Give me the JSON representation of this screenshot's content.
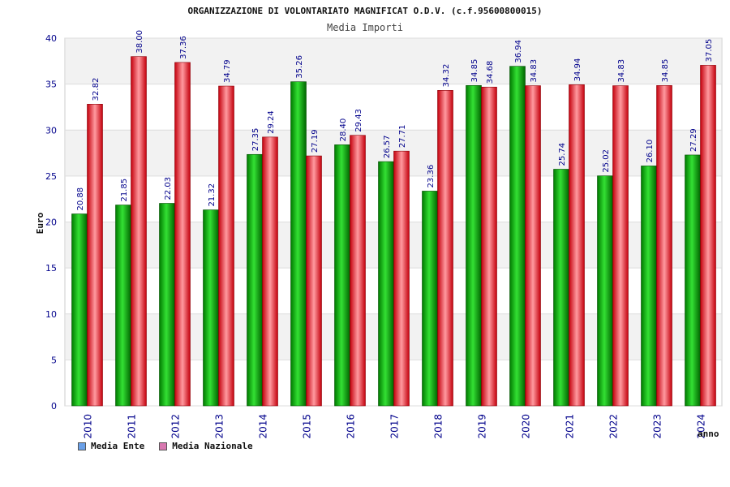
{
  "chart_data": {
    "type": "bar",
    "title": "ORGANIZZAZIONE DI VOLONTARIATO MAGNIFICAT O.D.V. (c.f.95600800015)",
    "subtitle": "Media Importi",
    "xlabel": "anno",
    "ylabel": "Euro",
    "ylim": [
      0,
      40
    ],
    "yticks": [
      "0",
      "5",
      "10",
      "15",
      "20",
      "25",
      "30",
      "35",
      "40"
    ],
    "grid": true,
    "legend_position": "bottom-left",
    "categories": [
      "2010",
      "2011",
      "2012",
      "2013",
      "2014",
      "2015",
      "2016",
      "2017",
      "2018",
      "2019",
      "2020",
      "2021",
      "2022",
      "2023",
      "2024"
    ],
    "series": [
      {
        "name": "Media Ente",
        "color": "#00a000",
        "legend_color": "#6aa0e8",
        "values": [
          20.88,
          21.85,
          22.03,
          21.32,
          27.35,
          35.26,
          28.4,
          26.57,
          23.36,
          34.85,
          36.94,
          25.74,
          25.02,
          26.1,
          27.29
        ],
        "labels": [
          "20.88",
          "21.85",
          "22.03",
          "21.32",
          "27.35",
          "35.26",
          "28.40",
          "26.57",
          "23.36",
          "34.85",
          "36.94",
          "25.74",
          "25.02",
          "26.10",
          "27.29"
        ]
      },
      {
        "name": "Media Nazionale",
        "color": "#e8202a",
        "legend_color": "#d878b0",
        "values": [
          32.82,
          38.0,
          37.36,
          34.79,
          29.24,
          27.19,
          29.43,
          27.71,
          34.32,
          34.68,
          34.83,
          34.94,
          34.83,
          34.85,
          37.05
        ],
        "labels": [
          "32.82",
          "38.00",
          "37.36",
          "34.79",
          "29.24",
          "27.19",
          "29.43",
          "27.71",
          "34.32",
          "34.68",
          "34.83",
          "34.94",
          "34.83",
          "34.85",
          "37.05"
        ]
      }
    ]
  }
}
